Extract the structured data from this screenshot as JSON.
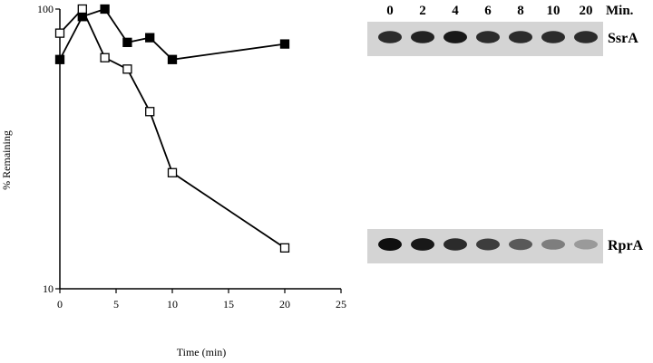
{
  "chart_data": {
    "type": "line",
    "xlabel": "Time (min)",
    "ylabel": "% Remaining",
    "yscale": "log",
    "xlim": [
      0,
      25
    ],
    "ylim": [
      10,
      100
    ],
    "x_ticks": [
      "0",
      "5",
      "10",
      "15",
      "20",
      "25"
    ],
    "y_ticks": [
      "10",
      "100"
    ],
    "grid": false,
    "series": [
      {
        "marker": "filled-square",
        "x": [
          0,
          2,
          4,
          6,
          8,
          10,
          20
        ],
        "y": [
          66,
          94,
          100,
          76,
          79,
          66,
          75
        ]
      },
      {
        "marker": "open-square",
        "x": [
          0,
          2,
          4,
          6,
          8,
          10,
          20
        ],
        "y": [
          82,
          100,
          67,
          61,
          43,
          26,
          14
        ]
      }
    ]
  },
  "gel": {
    "header_label": "Min.",
    "timepoints": [
      "0",
      "2",
      "4",
      "6",
      "8",
      "10",
      "20"
    ],
    "blots": [
      {
        "name": "SsrA",
        "intensity": [
          0.85,
          0.9,
          0.95,
          0.85,
          0.85,
          0.85,
          0.85
        ]
      },
      {
        "name": "RprA",
        "intensity": [
          1.0,
          0.95,
          0.85,
          0.75,
          0.6,
          0.4,
          0.25
        ]
      }
    ]
  }
}
